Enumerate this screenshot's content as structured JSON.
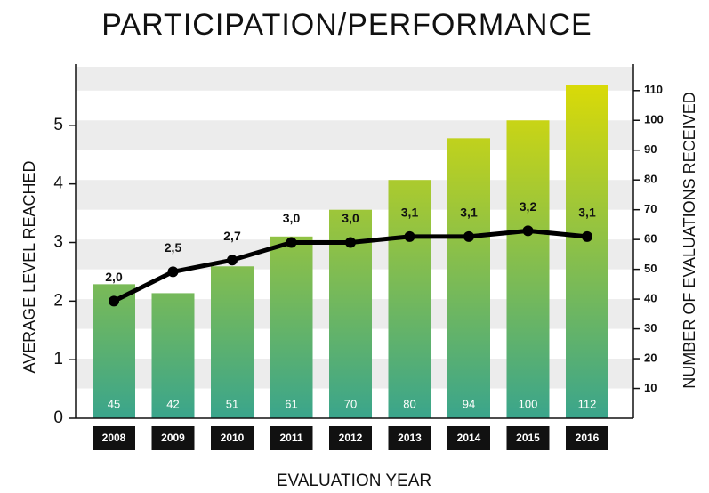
{
  "chart_data": {
    "type": "combo",
    "title": "PARTICIPATION/PERFORMANCE",
    "x_label": "EVALUATION YEAR",
    "y_label": "AVERAGE LEVEL REACHED",
    "y2_label": "NUMBER OF EVALUATIONS RECEIVED",
    "categories": [
      "2008",
      "2009",
      "2010",
      "2011",
      "2012",
      "2013",
      "2014",
      "2015",
      "2016"
    ],
    "series": [
      {
        "type": "bar",
        "axis": "y2",
        "colors": [
          "#e2dd00",
          "#3aa58c"
        ],
        "values": [
          45,
          42,
          51,
          61,
          70,
          80,
          94,
          100,
          112
        ]
      },
      {
        "type": "line",
        "axis": "y",
        "color": "#000000",
        "values": [
          2.0,
          2.5,
          2.7,
          3.0,
          3.0,
          3.1,
          3.1,
          3.2,
          3.1
        ],
        "value_labels": [
          "2,0",
          "2,5",
          "2,7",
          "3,0",
          "3,0",
          "3,1",
          "3,1",
          "3,2",
          "3,1"
        ]
      }
    ],
    "ylim": [
      0,
      6
    ],
    "yticks": [
      0,
      1,
      2,
      3,
      4,
      5
    ],
    "y2lim": [
      0,
      118
    ],
    "y2ticks": [
      10,
      20,
      30,
      40,
      50,
      60,
      70,
      80,
      90,
      100,
      110
    ],
    "grid": true
  }
}
